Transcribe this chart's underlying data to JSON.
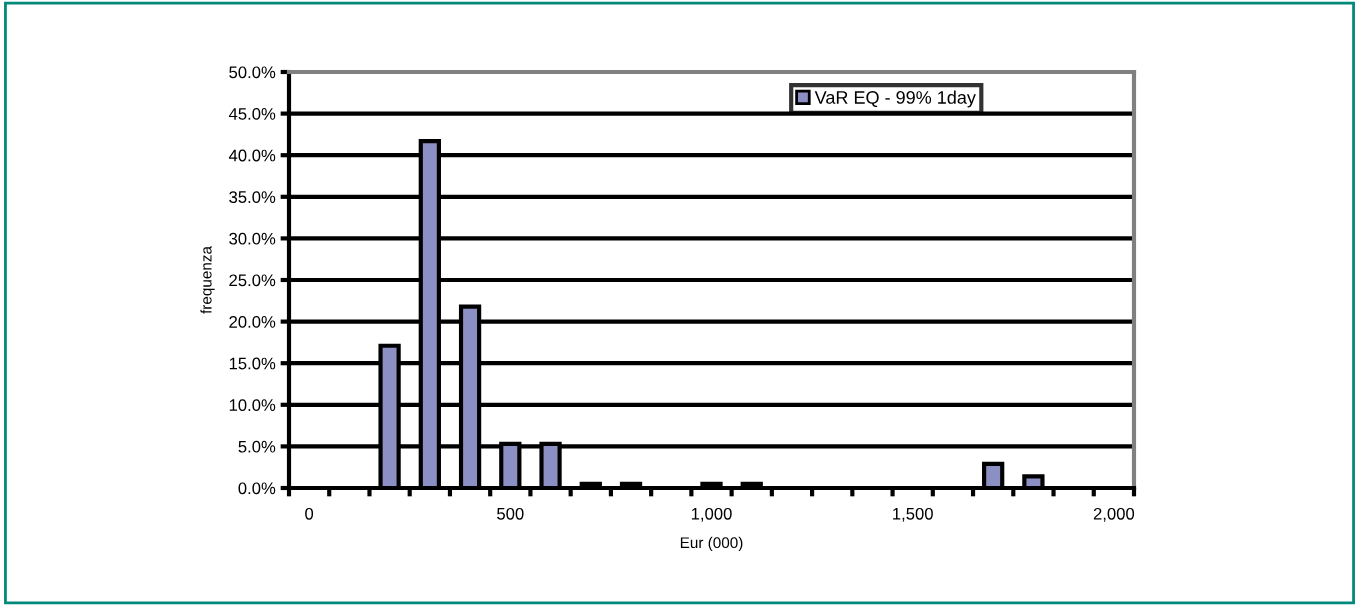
{
  "chart_data": {
    "type": "bar",
    "xlabel": "Eur (000)",
    "ylabel": "frequenza",
    "categories": [
      "0",
      null,
      null,
      null,
      null,
      "500",
      null,
      null,
      null,
      null,
      "1,000",
      null,
      null,
      null,
      null,
      "1,500",
      null,
      null,
      null,
      null,
      "2,000"
    ],
    "series": [
      {
        "name": "VaR EQ - 99% 1day",
        "color": "#8c8fc4",
        "values": [
          0,
          0,
          17.1,
          41.7,
          21.8,
          5.3,
          5.3,
          0.5,
          0.5,
          0,
          0.5,
          0.5,
          0,
          0,
          0,
          0,
          0,
          2.9,
          1.4,
          0,
          0
        ]
      }
    ],
    "ylim": [
      0,
      50
    ],
    "yticks": [
      {
        "value": 0,
        "label": "0.0%"
      },
      {
        "value": 5,
        "label": "5.0%"
      },
      {
        "value": 10,
        "label": "10.0%"
      },
      {
        "value": 15,
        "label": "15.0%"
      },
      {
        "value": 20,
        "label": "20.0%"
      },
      {
        "value": 25,
        "label": "25.0%"
      },
      {
        "value": 30,
        "label": "30.0%"
      },
      {
        "value": 35,
        "label": "35.0%"
      },
      {
        "value": 40,
        "label": "40.0%"
      },
      {
        "value": 45,
        "label": "45.0%"
      },
      {
        "value": 50,
        "label": "50.0%"
      }
    ],
    "grid": "y",
    "legend": "top right"
  }
}
